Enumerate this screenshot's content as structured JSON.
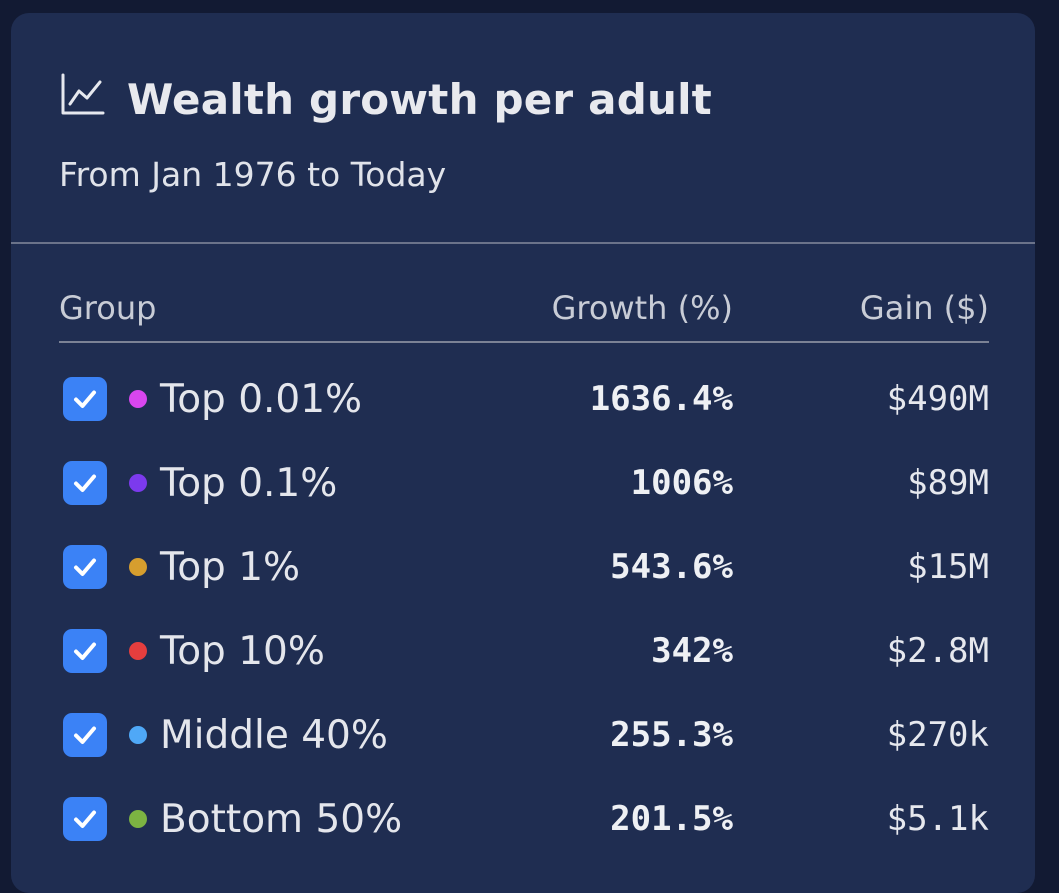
{
  "card": {
    "title": "Wealth growth per adult",
    "title_icon": "line-chart-icon",
    "subtitle": "From Jan 1976 to Today"
  },
  "table": {
    "headers": {
      "group": "Group",
      "growth": "Growth (%)",
      "gain": "Gain ($)"
    },
    "rows": [
      {
        "label": "Top 0.01%",
        "growth": "1636.4%",
        "gain": "$490M",
        "color": "#d946ef",
        "checked": true
      },
      {
        "label": "Top 0.1%",
        "growth": "1006%",
        "gain": "$89M",
        "color": "#7c3aed",
        "checked": true
      },
      {
        "label": "Top 1%",
        "growth": "543.6%",
        "gain": "$15M",
        "color": "#d69e2e",
        "checked": true
      },
      {
        "label": "Top 10%",
        "growth": "342%",
        "gain": "$2.8M",
        "color": "#e53e3e",
        "checked": true
      },
      {
        "label": "Middle 40%",
        "growth": "255.3%",
        "gain": "$270k",
        "color": "#4fa8f7",
        "checked": true
      },
      {
        "label": "Bottom 50%",
        "growth": "201.5%",
        "gain": "$5.1k",
        "color": "#7cb342",
        "checked": true
      }
    ]
  },
  "colors": {
    "card_bg": "#1f2d51",
    "page_bg": "#121a33",
    "checkbox": "#3b82f6"
  }
}
